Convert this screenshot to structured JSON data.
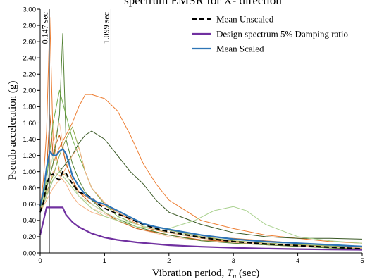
{
  "chart_data": {
    "type": "line",
    "title": "spectrum EMSR for X- direction",
    "xlabel": "Vibration period, T_n (sec)",
    "xlabel_main": "Vibration period, ",
    "xlabel_var": "T",
    "xlabel_sub": "n",
    "xlabel_unit": " (sec)",
    "ylabel": "Pseudo acceleration (g)",
    "xlim": [
      0,
      5
    ],
    "ylim": [
      0,
      3
    ],
    "x_ticks": [
      "0",
      "1",
      "2",
      "3",
      "4",
      "5"
    ],
    "y_ticks": [
      "0.00",
      "0.20",
      "0.40",
      "0.60",
      "0.80",
      "1.00",
      "1.20",
      "1.40",
      "1.60",
      "1.80",
      "2.00",
      "2.20",
      "2.40",
      "2.60",
      "2.80",
      "3.00"
    ],
    "grid": false,
    "legend_position": "top-right",
    "annotations": [
      {
        "x": 0.147,
        "text": "0.147 sec"
      },
      {
        "x": 1.099,
        "text": "1.099 sec"
      }
    ],
    "series": [
      {
        "name": "Mean Unscaled",
        "color": "#000000",
        "dash": true,
        "x": [
          0,
          0.05,
          0.1,
          0.15,
          0.2,
          0.25,
          0.3,
          0.35,
          0.4,
          0.5,
          0.6,
          0.7,
          0.8,
          0.9,
          1.0,
          1.2,
          1.4,
          1.6,
          1.8,
          2.0,
          2.5,
          3.0,
          3.5,
          4.0,
          4.5,
          5.0
        ],
        "y": [
          0.5,
          0.62,
          0.85,
          0.95,
          0.97,
          0.92,
          0.9,
          1.0,
          0.98,
          0.85,
          0.75,
          0.72,
          0.68,
          0.6,
          0.55,
          0.48,
          0.42,
          0.35,
          0.3,
          0.26,
          0.19,
          0.14,
          0.11,
          0.09,
          0.07,
          0.05
        ]
      },
      {
        "name": "Design spectrum 5% Damping ratio",
        "color": "#7030A0",
        "dash": false,
        "x": [
          0,
          0.1,
          0.2,
          0.25,
          0.3,
          0.35,
          0.4,
          0.5,
          0.6,
          0.8,
          1.0,
          1.2,
          1.5,
          2.0,
          2.5,
          3.0,
          3.5,
          4.0,
          4.5,
          5.0
        ],
        "y": [
          0.22,
          0.56,
          0.56,
          0.56,
          0.56,
          0.56,
          0.47,
          0.38,
          0.32,
          0.24,
          0.19,
          0.16,
          0.13,
          0.095,
          0.076,
          0.063,
          0.054,
          0.047,
          0.042,
          0.038
        ]
      },
      {
        "name": "Mean Scaled",
        "color": "#2E75B6",
        "dash": false,
        "x": [
          0,
          0.05,
          0.1,
          0.15,
          0.2,
          0.25,
          0.3,
          0.35,
          0.4,
          0.45,
          0.5,
          0.6,
          0.7,
          0.8,
          0.9,
          1.0,
          1.2,
          1.4,
          1.6,
          1.8,
          2.0,
          2.5,
          3.0,
          3.5,
          4.0,
          4.5,
          5.0
        ],
        "y": [
          0.58,
          0.75,
          1.05,
          1.25,
          1.2,
          1.2,
          1.25,
          1.28,
          1.22,
          1.1,
          0.95,
          0.82,
          0.72,
          0.66,
          0.62,
          0.6,
          0.52,
          0.44,
          0.36,
          0.32,
          0.29,
          0.22,
          0.17,
          0.14,
          0.12,
          0.1,
          0.08
        ]
      }
    ],
    "background_records": [
      {
        "color": "#ED7D31",
        "x": [
          0,
          0.05,
          0.1,
          0.15,
          0.2,
          0.25,
          0.3,
          0.4,
          0.5,
          0.6,
          0.7,
          0.8,
          0.9,
          1.0,
          1.2,
          1.4,
          1.6,
          1.8,
          2.0,
          2.5,
          3.0,
          3.5,
          4.0,
          4.5,
          5.0
        ],
        "y": [
          0.55,
          0.9,
          1.5,
          2.9,
          1.4,
          1.2,
          1.0,
          0.95,
          0.85,
          0.75,
          0.7,
          0.65,
          0.6,
          0.58,
          0.5,
          0.4,
          0.32,
          0.28,
          0.25,
          0.2,
          0.18,
          0.15,
          0.12,
          0.1,
          0.08
        ]
      },
      {
        "color": "#ED7D31",
        "x": [
          0,
          0.1,
          0.2,
          0.3,
          0.4,
          0.5,
          0.6,
          0.7,
          0.8,
          1.0,
          1.2,
          1.4,
          1.6,
          1.8,
          2.0,
          2.5,
          3.0,
          3.5,
          4.0,
          4.5,
          5.0
        ],
        "y": [
          0.5,
          0.8,
          1.1,
          1.3,
          1.45,
          1.6,
          1.8,
          1.95,
          1.95,
          1.9,
          1.75,
          1.45,
          1.1,
          0.85,
          0.65,
          0.4,
          0.3,
          0.22,
          0.18,
          0.14,
          0.12
        ]
      },
      {
        "color": "#F4B183",
        "x": [
          0,
          0.1,
          0.2,
          0.3,
          0.4,
          0.5,
          0.6,
          0.8,
          1.0,
          1.2,
          1.5,
          2.0,
          2.5,
          3.0,
          3.5,
          4.0,
          4.5,
          5.0
        ],
        "y": [
          0.5,
          0.7,
          1.0,
          0.95,
          0.85,
          0.7,
          0.6,
          0.5,
          0.45,
          0.4,
          0.3,
          0.22,
          0.16,
          0.13,
          0.1,
          0.08,
          0.07,
          0.06
        ]
      },
      {
        "color": "#F8CBAD",
        "x": [
          0,
          0.1,
          0.2,
          0.3,
          0.4,
          0.5,
          0.6,
          0.8,
          1.0,
          1.2,
          1.5,
          2.0,
          2.5,
          3.0,
          4.0,
          5.0
        ],
        "y": [
          0.5,
          0.75,
          1.35,
          1.6,
          1.1,
          0.9,
          0.7,
          0.55,
          0.48,
          0.4,
          0.3,
          0.2,
          0.15,
          0.12,
          0.08,
          0.05
        ]
      },
      {
        "color": "#C55A11",
        "x": [
          0,
          0.1,
          0.15,
          0.2,
          0.25,
          0.3,
          0.4,
          0.5,
          0.6,
          0.8,
          1.0,
          1.2,
          1.5,
          2.0,
          2.5,
          3.0,
          3.5,
          4.0,
          5.0
        ],
        "y": [
          0.5,
          1.0,
          1.7,
          1.2,
          1.35,
          1.45,
          1.1,
          0.9,
          0.75,
          0.6,
          0.5,
          0.4,
          0.3,
          0.22,
          0.16,
          0.14,
          0.12,
          0.1,
          0.08
        ]
      },
      {
        "color": "#385723",
        "x": [
          0,
          0.1,
          0.2,
          0.3,
          0.4,
          0.5,
          0.6,
          0.7,
          0.8,
          0.9,
          1.0,
          1.2,
          1.4,
          1.6,
          1.8,
          2.0,
          2.5,
          3.0,
          3.5,
          4.0,
          4.5,
          5.0
        ],
        "y": [
          0.5,
          0.7,
          0.9,
          1.0,
          1.1,
          1.2,
          1.35,
          1.45,
          1.5,
          1.45,
          1.4,
          1.2,
          1.0,
          0.85,
          0.65,
          0.5,
          0.35,
          0.25,
          0.2,
          0.18,
          0.18,
          0.17
        ]
      },
      {
        "color": "#548235",
        "x": [
          0,
          0.1,
          0.2,
          0.3,
          0.35,
          0.4,
          0.5,
          0.6,
          0.7,
          0.8,
          1.0,
          1.2,
          1.5,
          2.0,
          2.5,
          3.0,
          3.5,
          4.0,
          4.5,
          5.0
        ],
        "y": [
          0.5,
          0.8,
          1.1,
          1.7,
          2.7,
          1.4,
          1.1,
          0.9,
          0.75,
          0.65,
          0.5,
          0.42,
          0.32,
          0.22,
          0.15,
          0.12,
          0.1,
          0.08,
          0.06,
          0.05
        ]
      },
      {
        "color": "#70AD47",
        "x": [
          0,
          0.1,
          0.2,
          0.3,
          0.4,
          0.5,
          0.6,
          0.7,
          0.8,
          1.0,
          1.2,
          1.5,
          2.0,
          2.5,
          3.0,
          3.5,
          4.0,
          5.0
        ],
        "y": [
          0.5,
          0.9,
          1.6,
          2.0,
          1.7,
          1.4,
          1.2,
          1.0,
          0.8,
          0.6,
          0.45,
          0.35,
          0.25,
          0.18,
          0.15,
          0.12,
          0.1,
          0.08
        ]
      },
      {
        "color": "#A9D18E",
        "x": [
          0,
          0.1,
          0.2,
          0.3,
          0.4,
          0.5,
          0.6,
          0.8,
          1.0,
          1.2,
          1.5,
          2.0,
          2.4,
          2.7,
          3.0,
          3.2,
          3.5,
          4.0,
          4.5,
          5.0
        ],
        "y": [
          0.5,
          0.7,
          0.9,
          1.0,
          0.9,
          0.8,
          0.7,
          0.55,
          0.45,
          0.4,
          0.32,
          0.3,
          0.4,
          0.52,
          0.57,
          0.52,
          0.35,
          0.2,
          0.15,
          0.12
        ]
      },
      {
        "color": "#C5E0B4",
        "x": [
          0,
          0.1,
          0.2,
          0.3,
          0.4,
          0.5,
          0.6,
          0.8,
          1.0,
          1.2,
          1.5,
          2.0,
          2.5,
          3.0,
          3.5,
          4.0,
          5.0
        ],
        "y": [
          0.5,
          0.85,
          1.2,
          1.05,
          0.95,
          0.85,
          0.7,
          0.6,
          0.5,
          0.42,
          0.35,
          0.25,
          0.2,
          0.15,
          0.12,
          0.1,
          0.08
        ]
      },
      {
        "color": "#8FA84B",
        "x": [
          0,
          0.1,
          0.2,
          0.3,
          0.4,
          0.5,
          0.6,
          0.7,
          0.8,
          1.0,
          1.2,
          1.5,
          2.0,
          2.5,
          3.0,
          3.5,
          4.0,
          5.0
        ],
        "y": [
          0.5,
          0.75,
          0.95,
          1.2,
          1.4,
          1.55,
          1.3,
          1.0,
          0.8,
          0.6,
          0.5,
          0.38,
          0.28,
          0.2,
          0.15,
          0.12,
          0.1,
          0.07
        ]
      },
      {
        "color": "#F4B183",
        "x": [
          0,
          0.1,
          0.2,
          0.3,
          0.4,
          0.5,
          0.6,
          0.7,
          0.8,
          1.0,
          1.2,
          1.5,
          2.0,
          2.5,
          3.0,
          4.0,
          5.0
        ],
        "y": [
          0.5,
          0.65,
          0.8,
          0.9,
          1.05,
          1.2,
          1.3,
          1.0,
          0.8,
          0.62,
          0.5,
          0.38,
          0.25,
          0.18,
          0.14,
          0.09,
          0.06
        ]
      }
    ]
  }
}
